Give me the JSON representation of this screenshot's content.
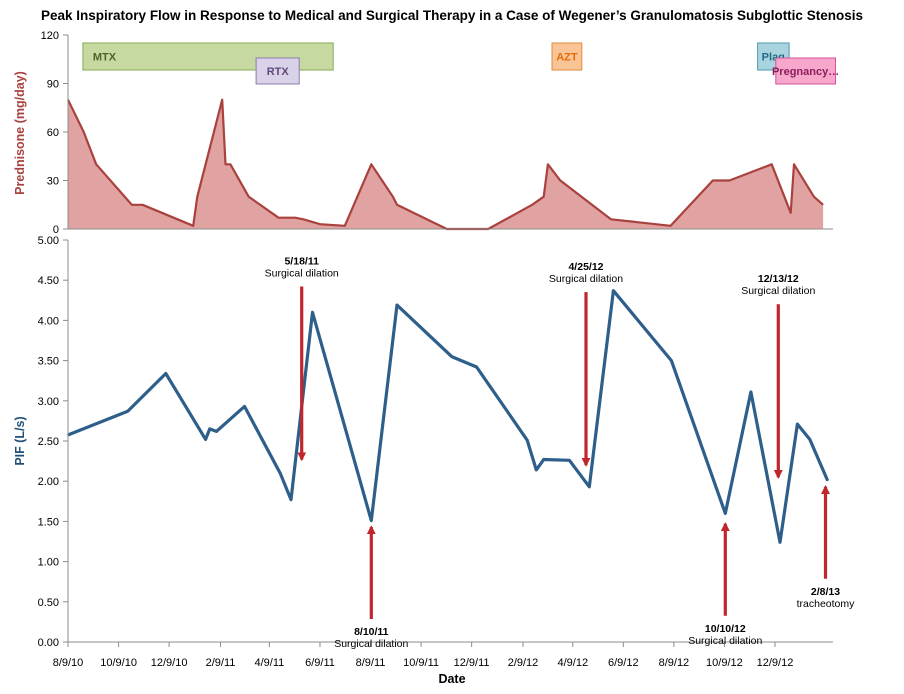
{
  "chart_data": [
    {
      "type": "area",
      "title": "Peak Inspiratory Flow in Response to Medical and Surgical Therapy in a Case of Wegener’s Granulomatosis Subglottic Stenosis",
      "ylabel": "Prednisone (mg/day)",
      "ylim": [
        0,
        120
      ],
      "yticks": [
        "0",
        "30",
        "60",
        "90",
        "120"
      ],
      "grid": false,
      "colors": {
        "fill": "#e0a3a1",
        "line": "#a9413e"
      },
      "series": [
        {
          "x": [
            "2010-08-09",
            "2010-08-28",
            "2010-09-12",
            "2010-10-25",
            "2010-11-07",
            "2011-01-07",
            "2011-01-12",
            "2011-02-11",
            "2011-02-15",
            "2011-02-21",
            "2011-03-15",
            "2011-04-20",
            "2011-05-10",
            "2011-05-20",
            "2011-06-09",
            "2011-07-09",
            "2011-08-10",
            "2011-09-05",
            "2011-09-10",
            "2011-11-09",
            "2011-12-29",
            "2012-02-20",
            "2012-03-05",
            "2012-03-10",
            "2012-03-25",
            "2012-05-25",
            "2012-08-05",
            "2012-09-25",
            "2012-10-15",
            "2012-12-05",
            "2012-12-28",
            "2013-01-01",
            "2013-01-25",
            "2013-02-05"
          ],
          "values": [
            80,
            60,
            40,
            15,
            15,
            2,
            20,
            80,
            40,
            40,
            20,
            7,
            7,
            6,
            3,
            2,
            40,
            20,
            15,
            0,
            0,
            15,
            20,
            40,
            30,
            6,
            2,
            30,
            30,
            40,
            10,
            40,
            20,
            15
          ]
        }
      ],
      "therapies": [
        {
          "label": "MTX",
          "start": "2010-08-27",
          "end": "2011-06-25",
          "row": 0,
          "fill": "#c6d9a1",
          "stroke": "#8aaa55",
          "text": "#4f6228"
        },
        {
          "label": "RTX",
          "start": "2011-03-24",
          "end": "2011-05-15",
          "row": 1,
          "fill": "#d9d2e9",
          "stroke": "#8a7cae",
          "text": "#5f497a"
        },
        {
          "label": "AZT",
          "start": "2012-03-15",
          "end": "2012-04-20",
          "row": 0,
          "fill": "#f9c596",
          "stroke": "#e08a3c",
          "text": "#e36c09"
        },
        {
          "label": "Plaq",
          "start": "2012-11-18",
          "end": "2012-12-26",
          "row": 0,
          "fill": "#a9d4df",
          "stroke": "#4e9ab0",
          "text": "#1f6b80"
        },
        {
          "label": "Pregnancy…",
          "start": "2012-12-10",
          "end": "2013-02-20",
          "row": 1,
          "fill": "#f7a6cc",
          "stroke": "#d6559a",
          "text": "#8b1e59"
        }
      ]
    },
    {
      "type": "line",
      "ylabel": "PIF (L/s)",
      "xlabel": "Date",
      "ylim": [
        0,
        5
      ],
      "yticks": [
        "0.00",
        "0.50",
        "1.00",
        "1.50",
        "2.00",
        "2.50",
        "3.00",
        "3.50",
        "4.00",
        "4.50",
        "5.00"
      ],
      "xlim": [
        "2010-08-09",
        "2013-02-17"
      ],
      "xticks": [
        "8/9/10",
        "10/9/10",
        "12/9/10",
        "2/9/11",
        "4/9/11",
        "6/9/11",
        "8/9/11",
        "10/9/11",
        "12/9/11",
        "2/9/12",
        "4/9/12",
        "6/9/12",
        "8/9/12",
        "10/9/12",
        "12/9/12"
      ],
      "grid": false,
      "colors": {
        "line": "#2e5f8a",
        "arrow": "#c0272d"
      },
      "series": [
        {
          "x": [
            "2010-08-10",
            "2010-10-20",
            "2010-12-05",
            "2011-01-22",
            "2011-01-27",
            "2011-02-04",
            "2011-03-10",
            "2011-04-22",
            "2011-05-05",
            "2011-05-31",
            "2011-08-10",
            "2011-09-10",
            "2011-11-15",
            "2011-12-15",
            "2012-02-14",
            "2012-02-25",
            "2012-03-05",
            "2012-04-05",
            "2012-04-29",
            "2012-05-28",
            "2012-08-06",
            "2012-10-10",
            "2012-11-10",
            "2012-12-15",
            "2013-01-05",
            "2013-01-20",
            "2013-02-10"
          ],
          "values": [
            2.58,
            2.87,
            3.34,
            2.52,
            2.65,
            2.62,
            2.93,
            2.1,
            1.77,
            4.1,
            1.51,
            4.19,
            3.55,
            3.42,
            2.51,
            2.14,
            2.27,
            2.26,
            1.93,
            4.37,
            3.5,
            1.6,
            3.11,
            1.24,
            2.71,
            2.52,
            2.02
          ]
        }
      ],
      "annotations": [
        {
          "date_label": "5/18/11",
          "event": "Surgical dilation",
          "date": "2011-05-18",
          "y": 2.27,
          "direction": "down"
        },
        {
          "date_label": "8/10/11",
          "event": "Surgical dilation",
          "date": "2011-08-10",
          "y": 1.43,
          "direction": "up"
        },
        {
          "date_label": "4/25/12",
          "event": "Surgical dilation",
          "date": "2012-04-25",
          "y": 2.2,
          "direction": "down"
        },
        {
          "date_label": "10/10/12",
          "event": "Surgical dilation",
          "date": "2012-10-10",
          "y": 1.47,
          "direction": "up"
        },
        {
          "date_label": "12/13/12",
          "event": "Surgical dilation",
          "date": "2012-12-13",
          "y": 2.05,
          "direction": "down"
        },
        {
          "date_label": "2/8/13",
          "event": "tracheotomy",
          "date": "2013-02-08",
          "y": 1.93,
          "direction": "up"
        }
      ]
    }
  ]
}
